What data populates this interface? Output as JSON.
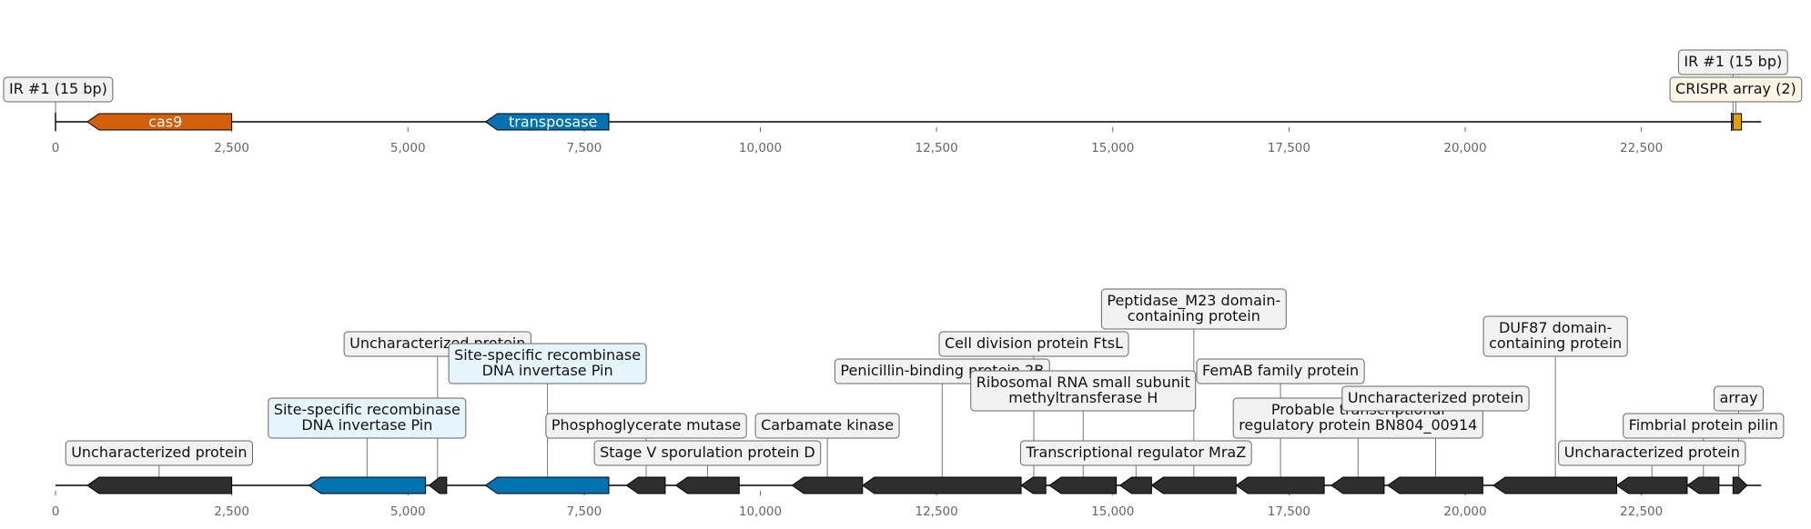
{
  "colors": {
    "cas9": "#d35f0a",
    "transposase": "#0372b3",
    "crispr_array": "#e69f00",
    "other_gene": "#2e2e2e",
    "backbone": "#000000",
    "label_box_default": "#f2f2f2",
    "label_box_transposase": "#e6f4fb",
    "label_box_crispr": "#fdf6e6",
    "leader_line": "#777777"
  },
  "chart_data": [
    {
      "type": "genome-map",
      "title": "",
      "x_range": [
        0,
        24200
      ],
      "ticks": [
        0,
        2500,
        5000,
        7500,
        10000,
        12500,
        15000,
        17500,
        20000,
        22500
      ],
      "tick_labels": [
        "0",
        "2,500",
        "5,000",
        "7,500",
        "10,000",
        "12,500",
        "15,000",
        "17,500",
        "20,000",
        "22,500"
      ],
      "features": [
        {
          "label": "cas9",
          "start": 450,
          "end": 2500,
          "strand": -1,
          "kind": "cas9",
          "inline": true
        },
        {
          "label": "transposase",
          "start": 6100,
          "end": 7850,
          "strand": -1,
          "kind": "transposase",
          "inline": true
        },
        {
          "label": "",
          "start": 23800,
          "end": 23920,
          "strand": 0,
          "kind": "crispr"
        }
      ],
      "ir_markers": [
        0,
        23780
      ],
      "callouts": [
        {
          "label": "IR #1 (15 bp)",
          "pos": 0,
          "level": 0,
          "kind": "default"
        },
        {
          "label": "CRISPR array (2)",
          "pos": 23840,
          "level": 0,
          "kind": "crispr"
        },
        {
          "label": "IR #1 (15 bp)",
          "pos": 23800,
          "level": 1,
          "kind": "default"
        }
      ]
    },
    {
      "type": "genome-map",
      "title": "",
      "x_range": [
        0,
        24200
      ],
      "ticks": [
        0,
        2500,
        5000,
        7500,
        10000,
        12500,
        15000,
        17500,
        20000,
        22500
      ],
      "tick_labels": [
        "0",
        "2,500",
        "5,000",
        "7,500",
        "10,000",
        "12,500",
        "15,000",
        "17,500",
        "20,000",
        "22,500"
      ],
      "features": [
        {
          "start": 450,
          "end": 2500,
          "strand": -1,
          "kind": "other"
        },
        {
          "start": 3600,
          "end": 5250,
          "strand": -1,
          "kind": "transposase"
        },
        {
          "start": 5300,
          "end": 5550,
          "strand": -1,
          "kind": "other"
        },
        {
          "start": 6100,
          "end": 7850,
          "strand": -1,
          "kind": "transposase"
        },
        {
          "start": 8100,
          "end": 8650,
          "strand": -1,
          "kind": "other"
        },
        {
          "start": 8800,
          "end": 9700,
          "strand": -1,
          "kind": "other"
        },
        {
          "start": 10450,
          "end": 11450,
          "strand": -1,
          "kind": "other"
        },
        {
          "start": 11450,
          "end": 13700,
          "strand": -1,
          "kind": "other"
        },
        {
          "start": 13700,
          "end": 14050,
          "strand": -1,
          "kind": "other"
        },
        {
          "start": 14100,
          "end": 15050,
          "strand": -1,
          "kind": "other"
        },
        {
          "start": 15100,
          "end": 15550,
          "strand": -1,
          "kind": "other"
        },
        {
          "start": 15550,
          "end": 16750,
          "strand": -1,
          "kind": "other"
        },
        {
          "start": 16750,
          "end": 18000,
          "strand": -1,
          "kind": "other"
        },
        {
          "start": 18100,
          "end": 18850,
          "strand": -1,
          "kind": "other"
        },
        {
          "start": 18900,
          "end": 20250,
          "strand": -1,
          "kind": "other"
        },
        {
          "start": 20400,
          "end": 22150,
          "strand": -1,
          "kind": "other"
        },
        {
          "start": 22150,
          "end": 23150,
          "strand": -1,
          "kind": "other"
        },
        {
          "start": 23150,
          "end": 23600,
          "strand": -1,
          "kind": "other"
        },
        {
          "start": 23800,
          "end": 24000,
          "strand": 1,
          "kind": "other"
        }
      ],
      "callouts": [
        {
          "label": "Uncharacterized protein",
          "pos": 1470,
          "level": 0,
          "kind": "default"
        },
        {
          "label": "Site-specific recombinase\nDNA invertase Pin",
          "pos": 4420,
          "level": 1,
          "kind": "transposase"
        },
        {
          "label": "Uncharacterized protein",
          "pos": 5420,
          "level": 4,
          "kind": "default"
        },
        {
          "label": "Site-specific recombinase\nDNA invertase Pin",
          "pos": 6980,
          "level": 3,
          "kind": "transposase"
        },
        {
          "label": "Phosphoglycerate mutase",
          "pos": 8380,
          "level": 1,
          "kind": "default"
        },
        {
          "label": "Stage V sporulation protein D",
          "pos": 9250,
          "level": 0,
          "kind": "default"
        },
        {
          "label": "Carbamate kinase",
          "pos": 10950,
          "level": 1,
          "kind": "default"
        },
        {
          "label": "Penicillin-binding protein 2B",
          "pos": 12580,
          "level": 3,
          "kind": "default"
        },
        {
          "label": "Cell division protein FtsL",
          "pos": 13880,
          "level": 4,
          "kind": "default"
        },
        {
          "label": "Ribosomal RNA small subunit\nmethyltransferase H",
          "pos": 14580,
          "level": 2,
          "kind": "default"
        },
        {
          "label": "Transcriptional regulator MraZ",
          "pos": 15330,
          "level": 0,
          "kind": "default"
        },
        {
          "label": "Peptidase_M23 domain-\ncontaining protein",
          "pos": 16150,
          "level": 5,
          "kind": "default"
        },
        {
          "label": "FemAB family protein",
          "pos": 17380,
          "level": 3,
          "kind": "default"
        },
        {
          "label": "Probable transcriptional\nregulatory protein BN804_00914",
          "pos": 18480,
          "level": 1,
          "kind": "default"
        },
        {
          "label": "Uncharacterized protein",
          "pos": 19580,
          "level": 2,
          "kind": "default"
        },
        {
          "label": "DUF87 domain-\ncontaining protein",
          "pos": 21280,
          "level": 4,
          "kind": "default"
        },
        {
          "label": "Uncharacterized protein",
          "pos": 22650,
          "level": 0,
          "kind": "default"
        },
        {
          "label": "Fimbrial protein pilin",
          "pos": 23380,
          "level": 1,
          "kind": "default"
        },
        {
          "label": "array",
          "pos": 23880,
          "level": 2,
          "kind": "default"
        }
      ]
    }
  ]
}
